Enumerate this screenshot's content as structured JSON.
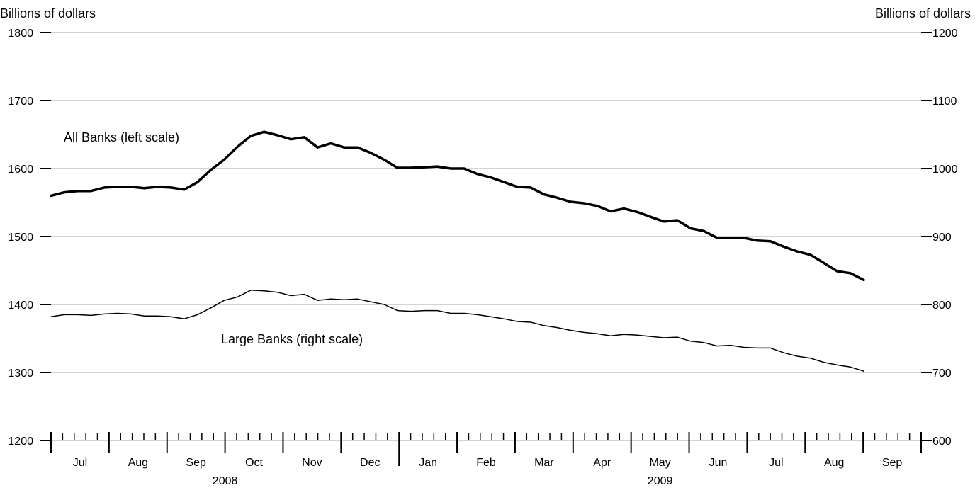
{
  "chart_data": {
    "type": "line",
    "title": "",
    "left_axis_label": "Billions of dollars",
    "right_axis_label": "Billions of dollars",
    "left_ylim": [
      1200,
      1800
    ],
    "right_ylim": [
      600,
      1200
    ],
    "left_yticks": [
      "1200",
      "1300",
      "1400",
      "1500",
      "1600",
      "1700",
      "1800"
    ],
    "right_yticks": [
      "600",
      "700",
      "800",
      "900",
      "1000",
      "1100",
      "1200"
    ],
    "grid": true,
    "months": [
      "Jul",
      "Aug",
      "Sep",
      "Oct",
      "Nov",
      "Dec",
      "Jan",
      "Feb",
      "Mar",
      "Apr",
      "May",
      "Jun",
      "Jul",
      "Aug",
      "Sep"
    ],
    "years": [
      "2008",
      "2009"
    ],
    "series": [
      {
        "name": "All Banks (left scale)",
        "axis": "left",
        "color": "#000000",
        "values": [
          1560,
          1565,
          1567,
          1567,
          1572,
          1573,
          1573,
          1571,
          1573,
          1572,
          1569,
          1580,
          1598,
          1613,
          1632,
          1648,
          1654,
          1649,
          1643,
          1646,
          1631,
          1637,
          1631,
          1631,
          1623,
          1613,
          1601,
          1601,
          1602,
          1603,
          1600,
          1600,
          1592,
          1587,
          1580,
          1573,
          1572,
          1562,
          1557,
          1551,
          1549,
          1545,
          1537,
          1541,
          1536,
          1529,
          1522,
          1524,
          1512,
          1508,
          1498,
          1498,
          1498,
          1494,
          1493,
          1485,
          1478,
          1473,
          1461,
          1449,
          1446,
          1436
        ]
      },
      {
        "name": "Large Banks (right scale)",
        "axis": "right",
        "color": "#000000",
        "values": [
          782,
          785,
          785,
          784,
          786,
          787,
          786,
          783,
          783,
          782,
          779,
          785,
          795,
          806,
          811,
          821,
          820,
          818,
          813,
          815,
          806,
          808,
          807,
          808,
          804,
          800,
          791,
          790,
          791,
          791,
          787,
          787,
          785,
          782,
          779,
          775,
          774,
          769,
          766,
          762,
          759,
          757,
          754,
          756,
          755,
          753,
          751,
          752,
          746,
          744,
          739,
          740,
          737,
          736,
          736,
          729,
          724,
          721,
          715,
          711,
          708,
          702
        ]
      }
    ]
  }
}
